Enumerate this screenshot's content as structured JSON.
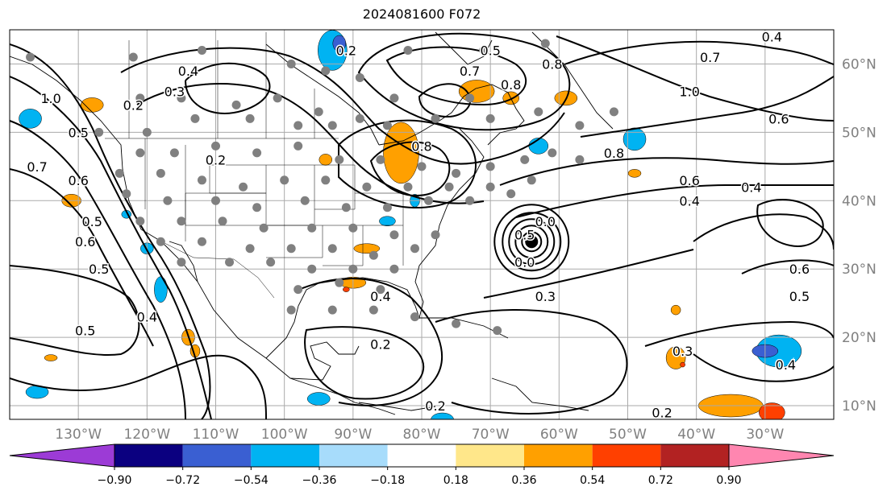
{
  "title": "2024081600 F072",
  "map": {
    "lat_labels": [
      "60°N",
      "50°N",
      "40°N",
      "30°N",
      "20°N",
      "10°N"
    ],
    "lon_labels": [
      "130°W",
      "120°W",
      "110°W",
      "100°W",
      "90°W",
      "80°W",
      "70°W",
      "60°W",
      "50°W",
      "40°W",
      "30°W"
    ],
    "contour_labels": [
      {
        "text": "0.2",
        "lon": -91,
        "lat": 62
      },
      {
        "text": "0.4",
        "lon": -114,
        "lat": 59
      },
      {
        "text": "0.3",
        "lon": -116,
        "lat": 56
      },
      {
        "text": "0.2",
        "lon": -122,
        "lat": 54
      },
      {
        "text": "1.0",
        "lon": -134,
        "lat": 55
      },
      {
        "text": "0.5",
        "lon": -130,
        "lat": 50
      },
      {
        "text": "0.7",
        "lon": -136,
        "lat": 45
      },
      {
        "text": "0.6",
        "lon": -130,
        "lat": 43
      },
      {
        "text": "0.2",
        "lon": -110,
        "lat": 46
      },
      {
        "text": "0.5",
        "lon": -128,
        "lat": 37
      },
      {
        "text": "0.6",
        "lon": -129,
        "lat": 34
      },
      {
        "text": "0.5",
        "lon": -127,
        "lat": 30
      },
      {
        "text": "0.4",
        "lon": -120,
        "lat": 23
      },
      {
        "text": "0.5",
        "lon": -129,
        "lat": 21
      },
      {
        "text": "0.8",
        "lon": -80,
        "lat": 48
      },
      {
        "text": "0.7",
        "lon": -73,
        "lat": 59
      },
      {
        "text": "0.8",
        "lon": -67,
        "lat": 57
      },
      {
        "text": "0.5",
        "lon": -70,
        "lat": 62
      },
      {
        "text": "0.8",
        "lon": -61,
        "lat": 60
      },
      {
        "text": "0.0",
        "lon": -62,
        "lat": 37
      },
      {
        "text": "0.5",
        "lon": -65,
        "lat": 35
      },
      {
        "text": "0.0",
        "lon": -65,
        "lat": 31
      },
      {
        "text": "0.3",
        "lon": -62,
        "lat": 26
      },
      {
        "text": "0.4",
        "lon": -86,
        "lat": 26
      },
      {
        "text": "0.2",
        "lon": -86,
        "lat": 19
      },
      {
        "text": "0.2",
        "lon": -78,
        "lat": 10
      },
      {
        "text": "0.8",
        "lon": -52,
        "lat": 47
      },
      {
        "text": "1.0",
        "lon": -41,
        "lat": 56
      },
      {
        "text": "0.7",
        "lon": -38,
        "lat": 61
      },
      {
        "text": "0.4",
        "lon": -29,
        "lat": 64
      },
      {
        "text": "0.6",
        "lon": -28,
        "lat": 52
      },
      {
        "text": "0.6",
        "lon": -41,
        "lat": 43
      },
      {
        "text": "0.4",
        "lon": -41,
        "lat": 40
      },
      {
        "text": "0.4",
        "lon": -32,
        "lat": 42
      },
      {
        "text": "0.6",
        "lon": -25,
        "lat": 30
      },
      {
        "text": "0.5",
        "lon": -25,
        "lat": 26
      },
      {
        "text": "0.3",
        "lon": -42,
        "lat": 18
      },
      {
        "text": "0.2",
        "lon": -45,
        "lat": 9
      },
      {
        "text": "0.4",
        "lon": -27,
        "lat": 16
      }
    ],
    "storm_center": {
      "lon": -64,
      "lat": 34
    }
  },
  "colorbar": {
    "tick_labels": [
      "−0.90",
      "−0.72",
      "−0.54",
      "−0.36",
      "−0.18",
      "0.18",
      "0.36",
      "0.54",
      "0.72",
      "0.90"
    ],
    "colors": [
      "#9c3bd6",
      "#0b0080",
      "#3a5fd2",
      "#00b3f2",
      "#a7dcfb",
      "#ffffff",
      "#ffe78a",
      "#ffa000",
      "#ff4000",
      "#b22222",
      "#ff86b0"
    ]
  }
}
